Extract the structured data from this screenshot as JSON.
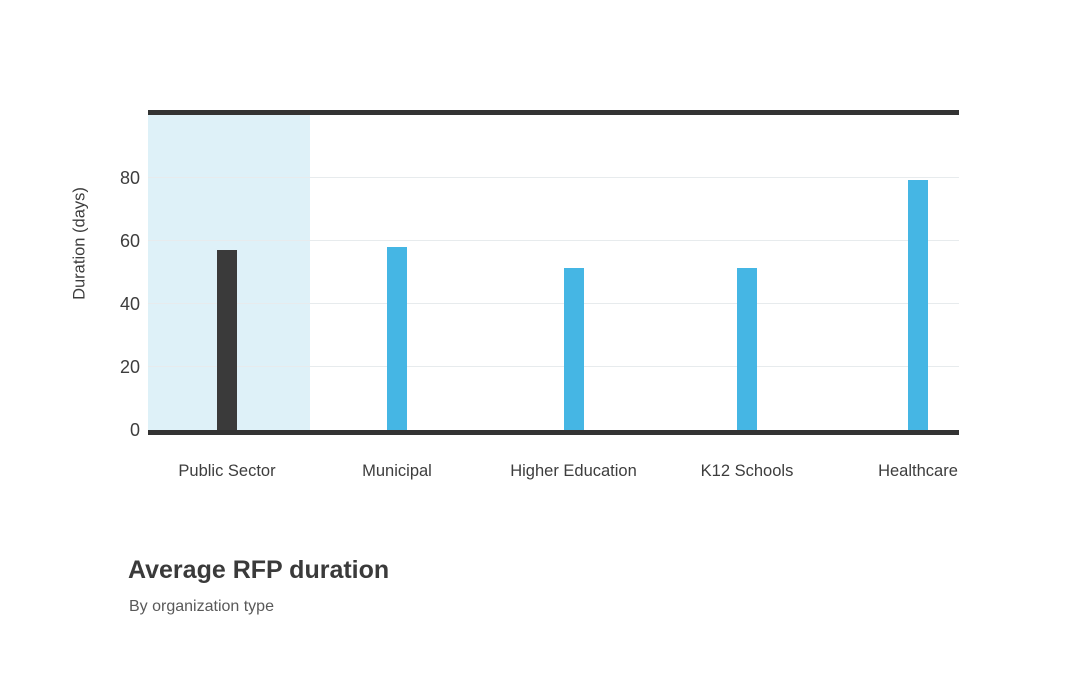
{
  "chart": {
    "title": "Average RFP duration",
    "subtitle": "By organization type",
    "ylabel": "Duration (days)"
  },
  "chart_data": {
    "type": "bar",
    "categories": [
      "Public Sector",
      "Municipal",
      "Higher Education",
      "K12 Schools",
      "Healthcare"
    ],
    "values": [
      57,
      58,
      51.5,
      51.5,
      79.5
    ],
    "title": "Average RFP duration",
    "subtitle": "By organization type",
    "xlabel": "",
    "ylabel": "Duration (days)",
    "yticks": [
      0,
      20,
      40,
      60,
      80
    ],
    "ylim": [
      0,
      100
    ],
    "grid": "horizontal",
    "legend": "none",
    "highlighted_category": "Public Sector",
    "colors": {
      "bar": "#45b6e4",
      "highlighted_bar": "#3a3a3a",
      "highlight_band": "#def1f8",
      "axis_line": "#333333",
      "gridline": "#e7ebed",
      "text": "#3d3d3d",
      "subtitle_text": "#595959"
    }
  }
}
